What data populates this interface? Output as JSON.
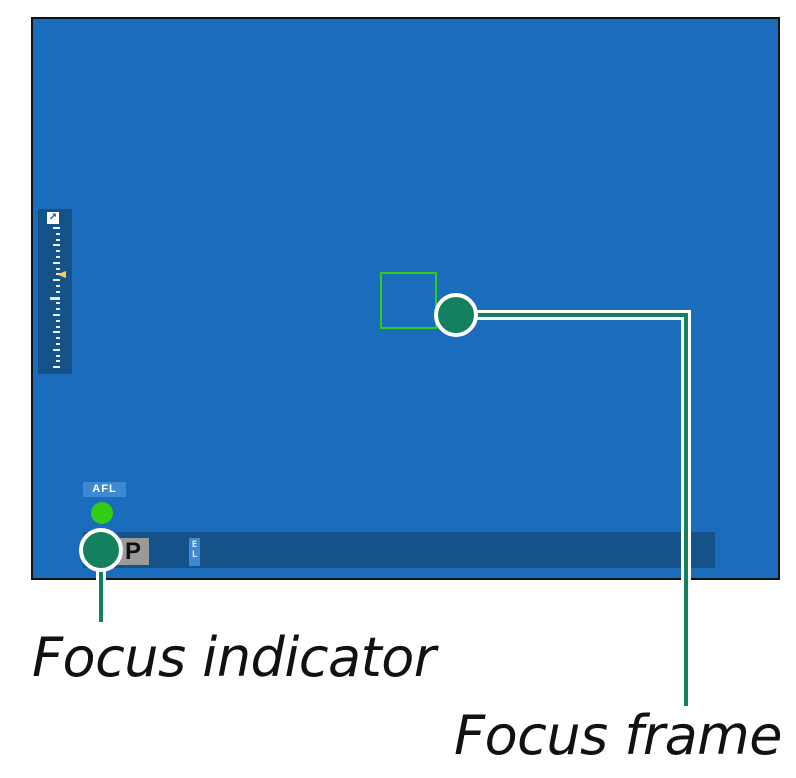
{
  "screen": {
    "background_color": "#1a6dbd",
    "panel_color": "#15528a"
  },
  "exposure_scale": {
    "icon": "exposure-compensation-icon",
    "icon_glyph": "↗",
    "pointer_color": "#f4d24a"
  },
  "info_bar": {
    "mode": "P",
    "badge_top": "E",
    "badge_bottom": "L"
  },
  "afl": {
    "label": "AFL"
  },
  "focus": {
    "indicator_color": "#33cc14",
    "frame_color": "#33cc14"
  },
  "callouts": {
    "indicator_label": "Focus indicator",
    "frame_label": "Focus frame",
    "marker_color": "#138060"
  }
}
